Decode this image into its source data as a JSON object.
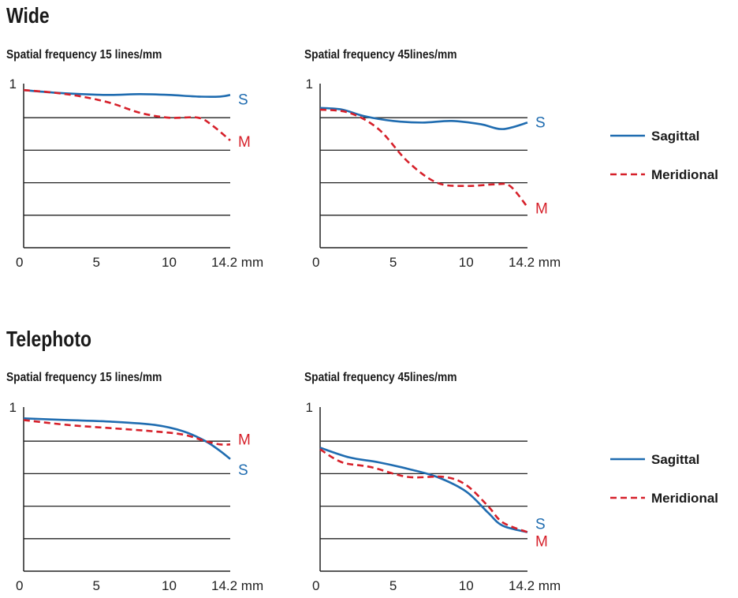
{
  "sections": [
    {
      "title": "Wide"
    },
    {
      "title": "Telephoto"
    }
  ],
  "colors": {
    "sagittal": "#1f6cb0",
    "meridional": "#d6202a",
    "axis": "#222222"
  },
  "legend": [
    {
      "name": "Sagittal",
      "style": "solid"
    },
    {
      "name": "Meridional",
      "style": "dashed"
    }
  ],
  "chart_data": [
    {
      "type": "line",
      "section": "Wide",
      "title": "Spatial frequency 15 lines/mm",
      "xlim": [
        0,
        14.2
      ],
      "ylim": [
        0,
        1
      ],
      "x_ticks": [
        "0",
        "5",
        "10",
        "14.2 mm"
      ],
      "y_tick_label": "1",
      "gridlines": [
        0.2,
        0.4,
        0.6,
        0.8
      ],
      "series": [
        {
          "name": "S",
          "points": [
            [
              0,
              0.97
            ],
            [
              2,
              0.955
            ],
            [
              4,
              0.945
            ],
            [
              6,
              0.94
            ],
            [
              8,
              0.945
            ],
            [
              10,
              0.94
            ],
            [
              12,
              0.93
            ],
            [
              13.5,
              0.93
            ],
            [
              14.2,
              0.94
            ]
          ]
        },
        {
          "name": "M",
          "points": [
            [
              0,
              0.97
            ],
            [
              2,
              0.955
            ],
            [
              4,
              0.93
            ],
            [
              6,
              0.89
            ],
            [
              8,
              0.83
            ],
            [
              10,
              0.8
            ],
            [
              12,
              0.8
            ],
            [
              13,
              0.75
            ],
            [
              14.2,
              0.66
            ]
          ]
        }
      ]
    },
    {
      "type": "line",
      "section": "Wide",
      "title": "Spatial frequency 45lines/mm",
      "xlim": [
        0,
        14.2
      ],
      "ylim": [
        0,
        1
      ],
      "x_ticks": [
        "0",
        "5",
        "10",
        "14.2 mm"
      ],
      "y_tick_label": "1",
      "gridlines": [
        0.2,
        0.4,
        0.6,
        0.8
      ],
      "series": [
        {
          "name": "S",
          "points": [
            [
              0,
              0.86
            ],
            [
              1.5,
              0.85
            ],
            [
              3,
              0.81
            ],
            [
              5,
              0.78
            ],
            [
              7,
              0.77
            ],
            [
              9,
              0.78
            ],
            [
              11,
              0.76
            ],
            [
              12.5,
              0.73
            ],
            [
              14.2,
              0.77
            ]
          ]
        },
        {
          "name": "M",
          "points": [
            [
              0,
              0.85
            ],
            [
              2,
              0.83
            ],
            [
              4,
              0.73
            ],
            [
              6,
              0.53
            ],
            [
              8,
              0.4
            ],
            [
              10,
              0.38
            ],
            [
              12,
              0.39
            ],
            [
              13,
              0.38
            ],
            [
              14.2,
              0.25
            ]
          ]
        }
      ]
    },
    {
      "type": "line",
      "section": "Telephoto",
      "title": "Spatial frequency 15 lines/mm",
      "xlim": [
        0,
        14.2
      ],
      "ylim": [
        0,
        1
      ],
      "x_ticks": [
        "0",
        "5",
        "10",
        "14.2 mm"
      ],
      "y_tick_label": "1",
      "gridlines": [
        0.2,
        0.4,
        0.6,
        0.8
      ],
      "series": [
        {
          "name": "S",
          "points": [
            [
              0,
              0.94
            ],
            [
              3,
              0.93
            ],
            [
              6,
              0.92
            ],
            [
              9,
              0.9
            ],
            [
              11,
              0.86
            ],
            [
              12.5,
              0.8
            ],
            [
              13.5,
              0.74
            ],
            [
              14.2,
              0.69
            ]
          ]
        },
        {
          "name": "M",
          "points": [
            [
              0,
              0.93
            ],
            [
              3,
              0.9
            ],
            [
              6,
              0.88
            ],
            [
              9,
              0.86
            ],
            [
              11,
              0.84
            ],
            [
              12.5,
              0.8
            ],
            [
              13.5,
              0.78
            ],
            [
              14.2,
              0.78
            ]
          ]
        }
      ]
    },
    {
      "type": "line",
      "section": "Telephoto",
      "title": "Spatial frequency 45lines/mm",
      "xlim": [
        0,
        14.2
      ],
      "ylim": [
        0,
        1
      ],
      "x_ticks": [
        "0",
        "5",
        "10",
        "14.2 mm"
      ],
      "y_tick_label": "1",
      "gridlines": [
        0.2,
        0.4,
        0.6,
        0.8
      ],
      "series": [
        {
          "name": "S",
          "points": [
            [
              0,
              0.76
            ],
            [
              2,
              0.7
            ],
            [
              4,
              0.67
            ],
            [
              6,
              0.63
            ],
            [
              8,
              0.58
            ],
            [
              10,
              0.49
            ],
            [
              11.5,
              0.36
            ],
            [
              12.5,
              0.28
            ],
            [
              14.2,
              0.24
            ]
          ]
        },
        {
          "name": "M",
          "points": [
            [
              0,
              0.75
            ],
            [
              1.5,
              0.67
            ],
            [
              3.5,
              0.64
            ],
            [
              6,
              0.58
            ],
            [
              8.5,
              0.58
            ],
            [
              10,
              0.53
            ],
            [
              11.5,
              0.4
            ],
            [
              12.5,
              0.3
            ],
            [
              14.2,
              0.24
            ]
          ]
        }
      ]
    }
  ]
}
